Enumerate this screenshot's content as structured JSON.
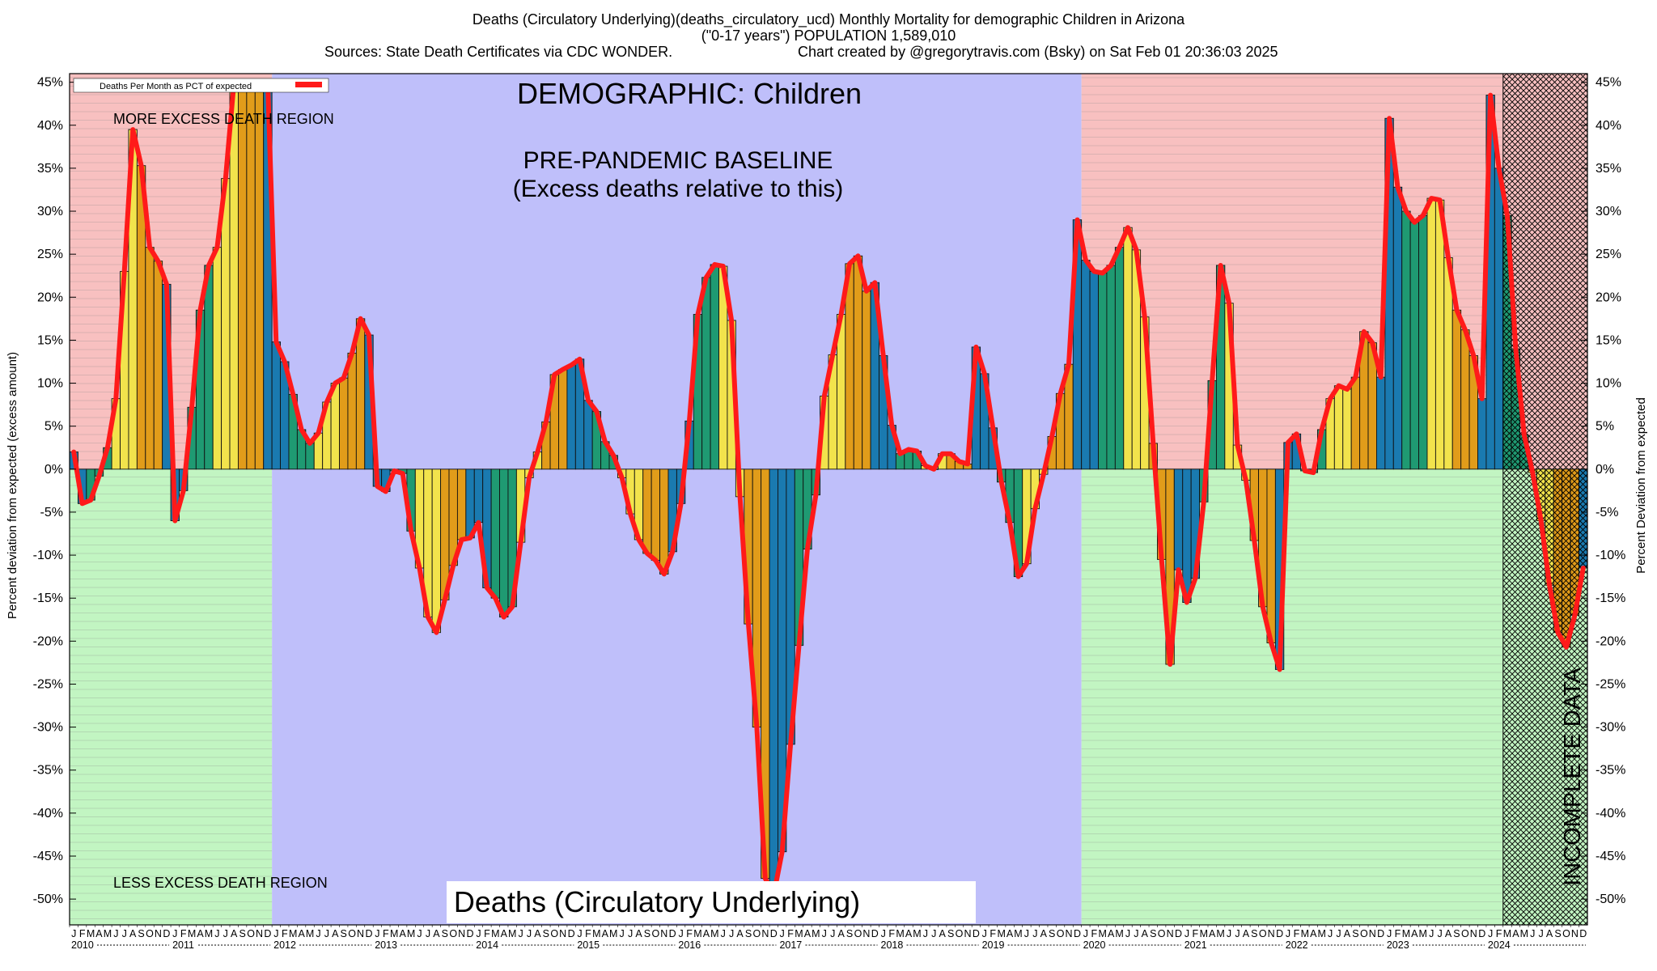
{
  "chart_data": {
    "type": "bar",
    "title_line1": "Deaths (Circulatory Underlying)(deaths_circulatory_ucd) Monthly Mortality for demographic Children in Arizona",
    "title_line2": "(\"0-17 years\") POPULATION 1,589,010",
    "title_line3_left": "Sources: State Death Certificates via CDC WONDER.",
    "title_line3_right": "Chart created by @gregorytravis.com (Bsky) on Sat Feb 01 20:36:03 2025",
    "ylabel_left": "Percent deviation from expected (excess amount)",
    "ylabel_right": "Percent Deviation from expected",
    "legend": "Deaths Per Month as PCT of expected",
    "ylim": [
      -53,
      46
    ],
    "yticks": [
      "45%",
      "40%",
      "35%",
      "30%",
      "25%",
      "20%",
      "15%",
      "10%",
      "5%",
      "0%",
      "-5%",
      "-10%",
      "-15%",
      "-20%",
      "-25%",
      "-30%",
      "-35%",
      "-40%",
      "-45%",
      "-50%"
    ],
    "ytick_values": [
      45,
      40,
      35,
      30,
      25,
      20,
      15,
      10,
      5,
      0,
      -5,
      -10,
      -15,
      -20,
      -25,
      -30,
      -35,
      -40,
      -45,
      -50
    ],
    "month_letters": [
      "J",
      "F",
      "M",
      "A",
      "M",
      "J",
      "J",
      "A",
      "S",
      "O",
      "N",
      "D"
    ],
    "years": [
      "2010",
      "2011",
      "2012",
      "2013",
      "2014",
      "2015",
      "2016",
      "2017",
      "2018",
      "2019",
      "2020",
      "2021",
      "2022",
      "2023",
      "2024"
    ],
    "annotations": {
      "demographic": "DEMOGRAPHIC: Children",
      "baseline_line1": "PRE-PANDEMIC BASELINE",
      "baseline_line2": "(Excess deaths relative to this)",
      "more_excess": "MORE EXCESS DEATH REGION",
      "less_excess": "LESS EXCESS DEATH REGION",
      "cause": "Deaths (Circulatory Underlying)",
      "incomplete": "INCOMPLETE DATA"
    },
    "regions": {
      "pre_baseline": {
        "from_month": 0,
        "to_month": 24
      },
      "baseline": {
        "from_month": 24,
        "to_month": 120
      },
      "post_baseline": {
        "from_month": 120,
        "to_month": 180
      },
      "incomplete": {
        "from_month": 170,
        "to_month": 180
      }
    },
    "season_colors": [
      "#1a7ab0",
      "#1f9a72",
      "#f2e34c",
      "#e19c1a"
    ],
    "colors": {
      "excess_region": "#f8c0c0",
      "deficit_region": "#c2f5c2",
      "baseline_region": "#bfbffa",
      "line": "#ff1a1a"
    },
    "values": [
      2,
      -4,
      -3.6,
      -0.8,
      2.5,
      8.2,
      23,
      39.5,
      35.3,
      25.8,
      24.2,
      21.5,
      -6,
      -2.5,
      7.2,
      18.5,
      23.7,
      25.8,
      33.8,
      45,
      45,
      45,
      45,
      45,
      14.8,
      12.5,
      8.7,
      4.6,
      3,
      4.2,
      7.8,
      10,
      10.6,
      13.5,
      17.5,
      15.6,
      -2,
      -2.6,
      -0.2,
      -0.5,
      -7.2,
      -11.5,
      -17.2,
      -19,
      -15.2,
      -11.2,
      -8.2,
      -8,
      -6.2,
      -13.8,
      -15,
      -17.2,
      -16,
      -8.5,
      -1,
      2,
      5.5,
      11,
      11.6,
      12.1,
      12.8,
      8,
      6.7,
      3.2,
      1.6,
      -1,
      -5.2,
      -8.2,
      -9.8,
      -10.6,
      -12.2,
      -9.6,
      -4,
      5.6,
      18,
      22.3,
      23.8,
      23.6,
      17.3,
      -3.2,
      -18,
      -30,
      -47.6,
      -49.5,
      -44.5,
      -32,
      -20.5,
      -9.3,
      -3,
      8.5,
      13.3,
      18,
      23.9,
      24.8,
      20.7,
      21.7,
      13.2,
      5.1,
      1.8,
      2.3,
      2.1,
      0.4,
      0,
      1.8,
      1.8,
      0.9,
      0.6,
      14.2,
      11.1,
      4.8,
      -1.5,
      -6.2,
      -12.5,
      -11,
      -4.6,
      -0.6,
      3.8,
      8.8,
      12.2,
      29,
      24.3,
      23,
      22.8,
      23.7,
      25.8,
      28.1,
      25.5,
      17.7,
      3,
      -10.5,
      -22.7,
      -11.7,
      -15.5,
      -12.7,
      -3.8,
      10.3,
      23.7,
      19.3,
      2.8,
      -1.3,
      -8.3,
      -16,
      -20.2,
      -23.3,
      3.1,
      4.1,
      -0.2,
      -0.4,
      4.6,
      8.2,
      9.7,
      9.3,
      10.7,
      16,
      14.7,
      10.7,
      40.8,
      32.8,
      30,
      28.7,
      29.5,
      31.5,
      31.3,
      24.6,
      18.5,
      16.2,
      13.2,
      8.2,
      43.5,
      35,
      29.5,
      14,
      4,
      -0.4,
      -6,
      -13.5,
      -19,
      -20.7,
      -17,
      -11.5
    ]
  }
}
